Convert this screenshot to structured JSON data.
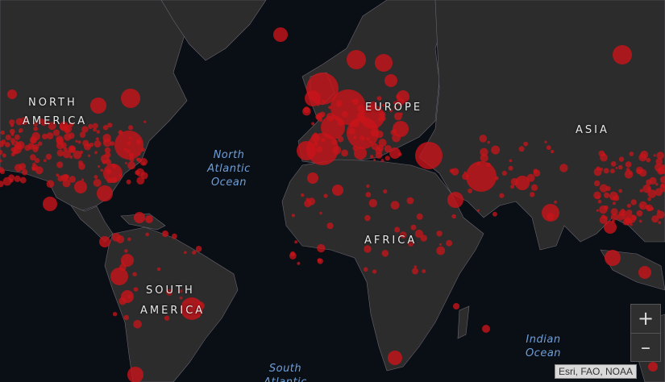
{
  "map": {
    "continents": [
      "NORTH",
      "AMERICA",
      "EUROPE",
      "ASIA",
      "AFRICA",
      "SOUTH",
      "AMERICA"
    ],
    "oceans": {
      "north_atlantic": [
        "North",
        "Atlantic",
        "Ocean"
      ],
      "indian": [
        "Indian",
        "Ocean"
      ],
      "south_atlantic": [
        "South",
        "Atlantic"
      ]
    },
    "colors": {
      "ocean": "#0a0e15",
      "land": "#2c2c2c",
      "marker": "#c8141a"
    },
    "zoom_in_label": "+",
    "zoom_out_label": "–",
    "attribution": "Esri, FAO, NOAA"
  }
}
